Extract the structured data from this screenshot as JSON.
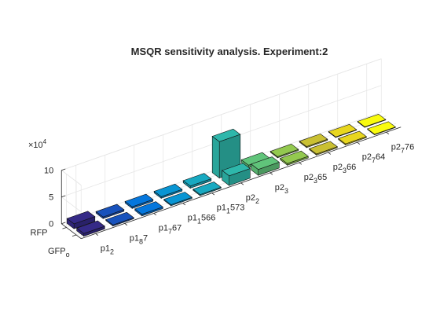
{
  "chart_data": {
    "type": "bar3",
    "title": "MSQR sensitivity analysis. Experiment:2",
    "z_exponent_label": "×10",
    "z_exponent_power": "4",
    "z_ticks": [
      "0",
      "5",
      "10"
    ],
    "z_tick_values": [
      0,
      5,
      10
    ],
    "zlim": [
      0,
      10
    ],
    "x_categories": [
      {
        "id": "p1_2",
        "base": "p1",
        "sub": "2",
        "after": ""
      },
      {
        "id": "p1_8_7",
        "base": "p1",
        "sub": "8",
        "after": "7"
      },
      {
        "id": "p1_7_67",
        "base": "p1",
        "sub": "7",
        "after": "67"
      },
      {
        "id": "p1_1_566",
        "base": "p1",
        "sub": "1",
        "after": "566"
      },
      {
        "id": "p1_1_573",
        "base": "p1",
        "sub": "1",
        "after": "573"
      },
      {
        "id": "p2_2",
        "base": "p2",
        "sub": "2",
        "after": ""
      },
      {
        "id": "p2_3",
        "base": "p2",
        "sub": "3",
        "after": ""
      },
      {
        "id": "p2_3_65",
        "base": "p2",
        "sub": "3",
        "after": "65"
      },
      {
        "id": "p2_3_66",
        "base": "p2",
        "sub": "3",
        "after": "66"
      },
      {
        "id": "p2_7_64",
        "base": "p2",
        "sub": "7",
        "after": "64"
      },
      {
        "id": "p2_7_76",
        "base": "p2",
        "sub": "7",
        "after": "76"
      }
    ],
    "y_categories": [
      {
        "id": "RFP",
        "base": "RFP",
        "sub": ""
      },
      {
        "id": "GFP_o",
        "base": "GFP",
        "sub": "o"
      }
    ],
    "series": [
      {
        "category": "RFP",
        "values": [
          0.9,
          0.3,
          0.3,
          0.3,
          0.4,
          6.8,
          0.5,
          0.2,
          0.2,
          0.1,
          0.1
        ]
      },
      {
        "category": "GFP_o",
        "values": [
          0.5,
          0.2,
          0.3,
          0.2,
          0.2,
          1.8,
          1.1,
          0.3,
          0.2,
          0.2,
          0.1
        ]
      }
    ],
    "colormap": "parula",
    "grid": true,
    "view": "3d"
  }
}
